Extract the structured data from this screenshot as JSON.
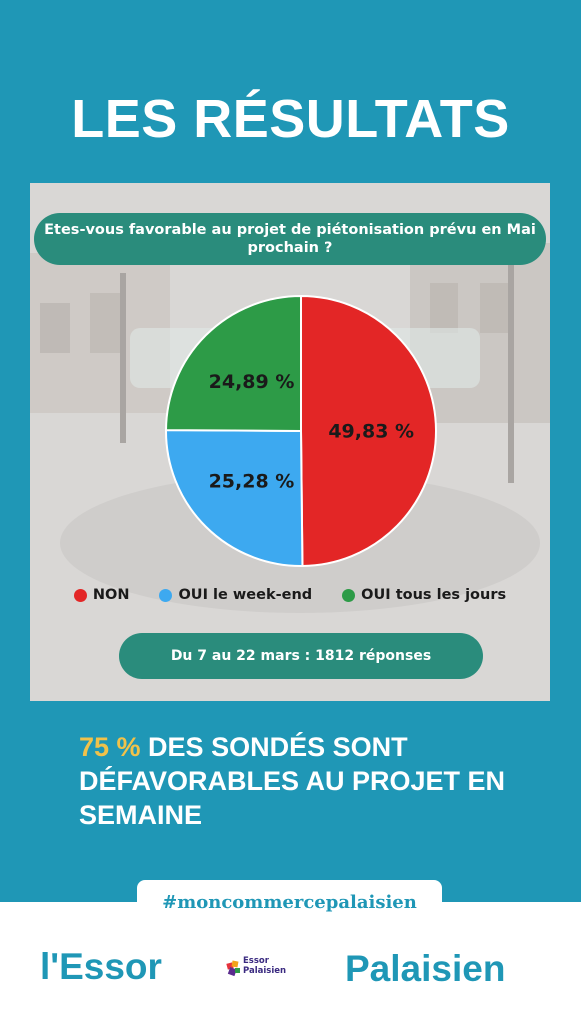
{
  "headline": "LES RÉSULTATS",
  "question": "Etes-vous favorable au projet de piétonisation prévu en Mai prochain ?",
  "dates_note": "Du 7 au 22 mars : 1812 réponses",
  "stat": {
    "pct": "75 %",
    "line1": " DES SONDÉS SONT",
    "line2": "DÉFAVORABLES AU PROJET EN",
    "line3": "SEMAINE"
  },
  "hashtag": "#moncommercepalaisien",
  "brand": {
    "left": "l'Essor",
    "right": "Palaisien",
    "logo_line1": "Essor",
    "logo_line2": "Palaisien"
  },
  "colors": {
    "background": "#1f97b6",
    "highlight": "#f0c24a",
    "pill": "#2a8c7c"
  },
  "chart_data": {
    "type": "pie",
    "title": "Etes-vous favorable au projet de piétonisation prévu en Mai prochain ?",
    "categories": [
      "NON",
      "OUI le week-end",
      "OUI tous les jours"
    ],
    "values": [
      49.83,
      25.28,
      24.89
    ],
    "value_labels": [
      "49,83 %",
      "25,28 %",
      "24,89 %"
    ],
    "colors": [
      "#e32626",
      "#3da9f0",
      "#2d9b47"
    ],
    "legend": "bottom"
  }
}
